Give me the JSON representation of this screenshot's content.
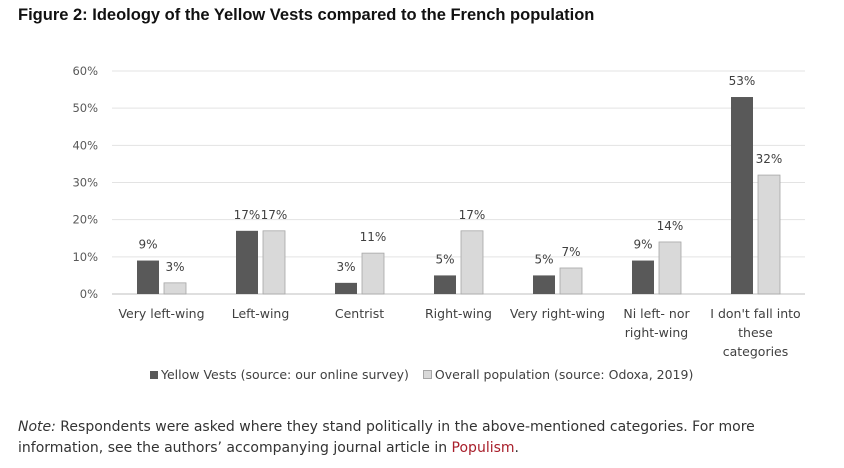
{
  "figure": {
    "title": "Figure 2: Ideology of the Yellow Vests compared to the French population"
  },
  "chart_data": {
    "type": "bar",
    "title": "",
    "xlabel": "",
    "ylabel": "",
    "ylim": [
      0,
      60
    ],
    "yticks": [
      "0%",
      "10%",
      "20%",
      "30%",
      "40%",
      "50%",
      "60%"
    ],
    "categories": [
      [
        "Very left-wing"
      ],
      [
        "Left-wing"
      ],
      [
        "Centrist"
      ],
      [
        "Right-wing"
      ],
      [
        "Very right-wing"
      ],
      [
        "Ni left- nor",
        "right-wing"
      ],
      [
        "I don't fall into",
        "these",
        "categories"
      ]
    ],
    "series": [
      {
        "name": "Yellow Vests (source: our online survey)",
        "color": "#595959",
        "values": [
          9,
          17,
          3,
          5,
          5,
          9,
          53
        ],
        "labels": [
          "9%",
          "17%",
          "3%",
          "5%",
          "5%",
          "9%",
          "53%"
        ]
      },
      {
        "name": "Overall population (source: Odoxa, 2019)",
        "color": "#d9d9d9",
        "values": [
          3,
          17,
          11,
          17,
          7,
          14,
          32
        ],
        "labels": [
          "3%",
          "17%",
          "11%",
          "17%",
          "7%",
          "14%",
          "32%"
        ]
      }
    ],
    "grid": true,
    "legend_position": "bottom"
  },
  "note": {
    "label": "Note:",
    "text": " Respondents were asked where they stand politically in the above-mentioned categories. For more information, see the authors’ accompanying journal article in ",
    "link_text": "Populism",
    "end": "."
  }
}
